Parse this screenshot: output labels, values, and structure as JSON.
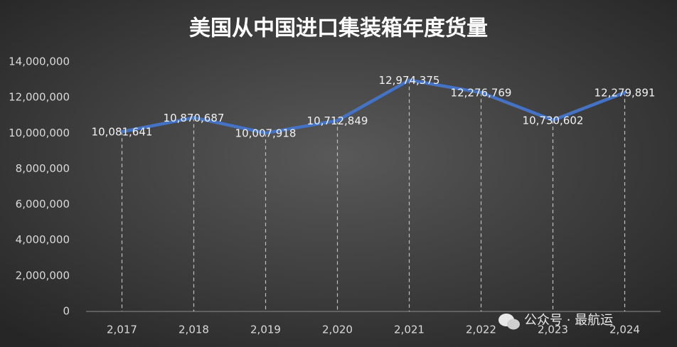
{
  "chart_data": {
    "type": "line",
    "title": "美国从中国进口集装箱年度货量",
    "categories": [
      "2,017",
      "2,018",
      "2,019",
      "2,020",
      "2,021",
      "2,022",
      "2,023",
      "2,024"
    ],
    "series": [
      {
        "name": "货量",
        "color": "#4472c4",
        "values": [
          10081641,
          10870687,
          10007918,
          10712849,
          12974375,
          12276769,
          10730602,
          12279891
        ],
        "value_labels": [
          "10,081,641",
          "10,870,687",
          "10,007,918",
          "10,712,849",
          "12,974,375",
          "12,276,769",
          "10,730,602",
          "12,279,891"
        ]
      }
    ],
    "ylim": [
      0,
      14000000
    ],
    "yticks": [
      {
        "value": 0,
        "label": "0"
      },
      {
        "value": 2000000,
        "label": "2,000,000"
      },
      {
        "value": 4000000,
        "label": "4,000,000"
      },
      {
        "value": 6000000,
        "label": "6,000,000"
      },
      {
        "value": 8000000,
        "label": "8,000,000"
      },
      {
        "value": 10000000,
        "label": "10,000,000"
      },
      {
        "value": 12000000,
        "label": "12,000,000"
      },
      {
        "value": 14000000,
        "label": "14,000,000"
      }
    ],
    "drop_lines": true
  },
  "watermark": "公众号 · 最航运"
}
